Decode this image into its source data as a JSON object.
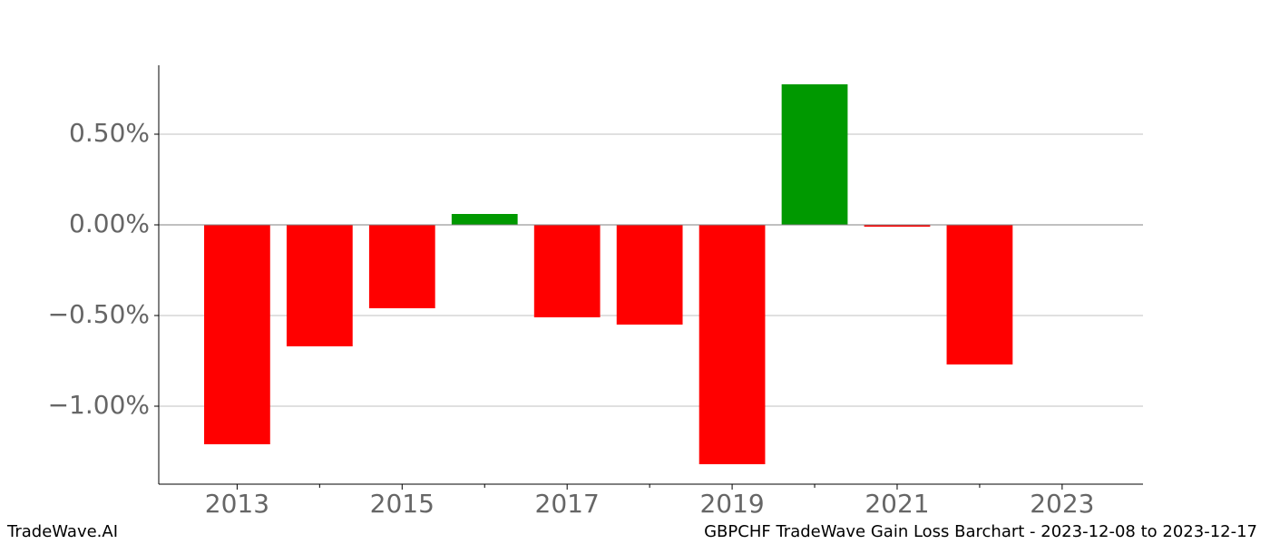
{
  "chart_data": {
    "type": "bar",
    "footer_left": "TradeWave.AI",
    "footer_right": "GBPCHF TradeWave Gain Loss Barchart - 2023-12-08 to 2023-12-17",
    "x": [
      2013,
      2014,
      2015,
      2016,
      2017,
      2018,
      2019,
      2020,
      2021,
      2022
    ],
    "values": [
      -1.21,
      -0.67,
      -0.46,
      0.06,
      -0.51,
      -0.55,
      -1.32,
      0.775,
      -0.01,
      -0.77
    ],
    "positive_color": "#009900",
    "negative_color": "#ff0000",
    "xlim": [
      2012.05,
      2023.98
    ],
    "xticks": [
      2013,
      2015,
      2017,
      2019,
      2021,
      2023
    ],
    "xminorticks": [
      2014,
      2016,
      2018,
      2020,
      2022
    ],
    "ylim": [
      -1.43,
      0.88
    ],
    "yticks": [
      {
        "value": 0.5,
        "label": "0.50%"
      },
      {
        "value": 0,
        "label": "0.00%"
      },
      {
        "value": -0.5,
        "label": "−0.50%"
      },
      {
        "value": -1,
        "label": "−1.00%"
      }
    ],
    "grid": true
  }
}
